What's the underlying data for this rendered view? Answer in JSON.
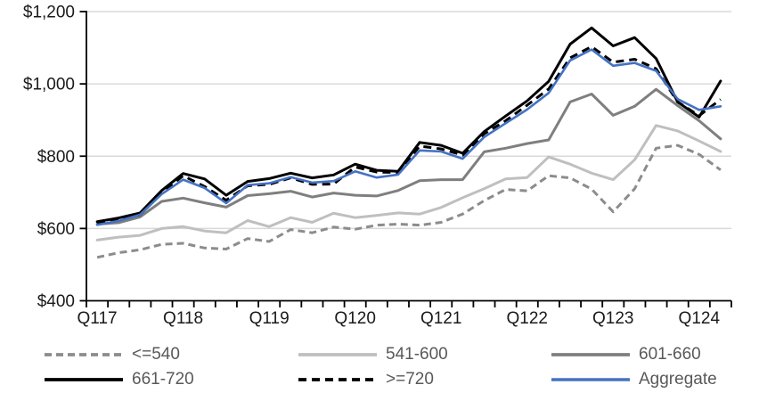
{
  "chart_data": {
    "type": "line",
    "title": "",
    "currency_prefix": "$",
    "ylim": [
      400,
      1200
    ],
    "ytick_step": 200,
    "y_tick_labels": [
      "$400",
      "$600",
      "$800",
      "$1,000",
      "$1,200"
    ],
    "gridlines": "horizontal",
    "legend_position": "bottom",
    "axis_color": "#000000",
    "gridline_color": "#d9d9d9",
    "axis_label_color": "#1a1a1a",
    "legend_text_color": "#595959",
    "categories": [
      "Q117",
      "",
      "",
      "",
      "Q118",
      "",
      "",
      "",
      "Q119",
      "",
      "",
      "",
      "Q120",
      "",
      "",
      "",
      "Q121",
      "",
      "",
      "",
      "Q122",
      "",
      "",
      "",
      "Q123",
      "",
      "",
      "",
      "Q124",
      ""
    ],
    "series": [
      {
        "name": "<=540",
        "color": "#8c8c8c",
        "dash": "8 5",
        "width": 3,
        "values": [
          520,
          533,
          541,
          556,
          559,
          546,
          543,
          572,
          564,
          597,
          588,
          604,
          598,
          609,
          612,
          609,
          617,
          640,
          677,
          708,
          704,
          746,
          740,
          709,
          646,
          710,
          822,
          830,
          805,
          762
        ]
      },
      {
        "name": "541-600",
        "color": "#bfbfbf",
        "dash": null,
        "width": 3,
        "values": [
          568,
          576,
          581,
          600,
          605,
          593,
          588,
          622,
          605,
          630,
          617,
          642,
          630,
          636,
          643,
          640,
          658,
          685,
          710,
          737,
          741,
          798,
          778,
          753,
          735,
          790,
          885,
          870,
          842,
          813
        ]
      },
      {
        "name": "601-660",
        "color": "#7f7f7f",
        "dash": null,
        "width": 3,
        "values": [
          612,
          616,
          632,
          675,
          684,
          671,
          659,
          691,
          696,
          703,
          687,
          698,
          692,
          690,
          705,
          732,
          735,
          735,
          812,
          822,
          835,
          845,
          950,
          972,
          913,
          938,
          985,
          940,
          898,
          848
        ]
      },
      {
        "name": "661-720",
        "color": "#000000",
        "dash": null,
        "width": 3,
        "values": [
          619,
          629,
          643,
          705,
          752,
          737,
          692,
          730,
          738,
          753,
          740,
          748,
          778,
          761,
          758,
          838,
          830,
          808,
          868,
          911,
          953,
          1007,
          1110,
          1155,
          1105,
          1128,
          1070,
          950,
          908,
          1008
        ]
      },
      {
        "name": ">=720",
        "color": "#000000",
        "dash": "9 6",
        "width": 3,
        "values": [
          615,
          624,
          638,
          698,
          746,
          716,
          678,
          718,
          722,
          740,
          722,
          723,
          770,
          756,
          755,
          828,
          820,
          803,
          862,
          898,
          941,
          986,
          1072,
          1103,
          1060,
          1068,
          1042,
          950,
          912,
          957
        ]
      },
      {
        "name": "Aggregate",
        "color": "#4472c4",
        "dash": null,
        "width": 2.6,
        "values": [
          610,
          621,
          638,
          695,
          735,
          712,
          670,
          720,
          725,
          742,
          727,
          731,
          758,
          741,
          749,
          816,
          813,
          793,
          853,
          891,
          929,
          975,
          1065,
          1095,
          1050,
          1058,
          1036,
          958,
          928,
          938
        ]
      }
    ]
  }
}
